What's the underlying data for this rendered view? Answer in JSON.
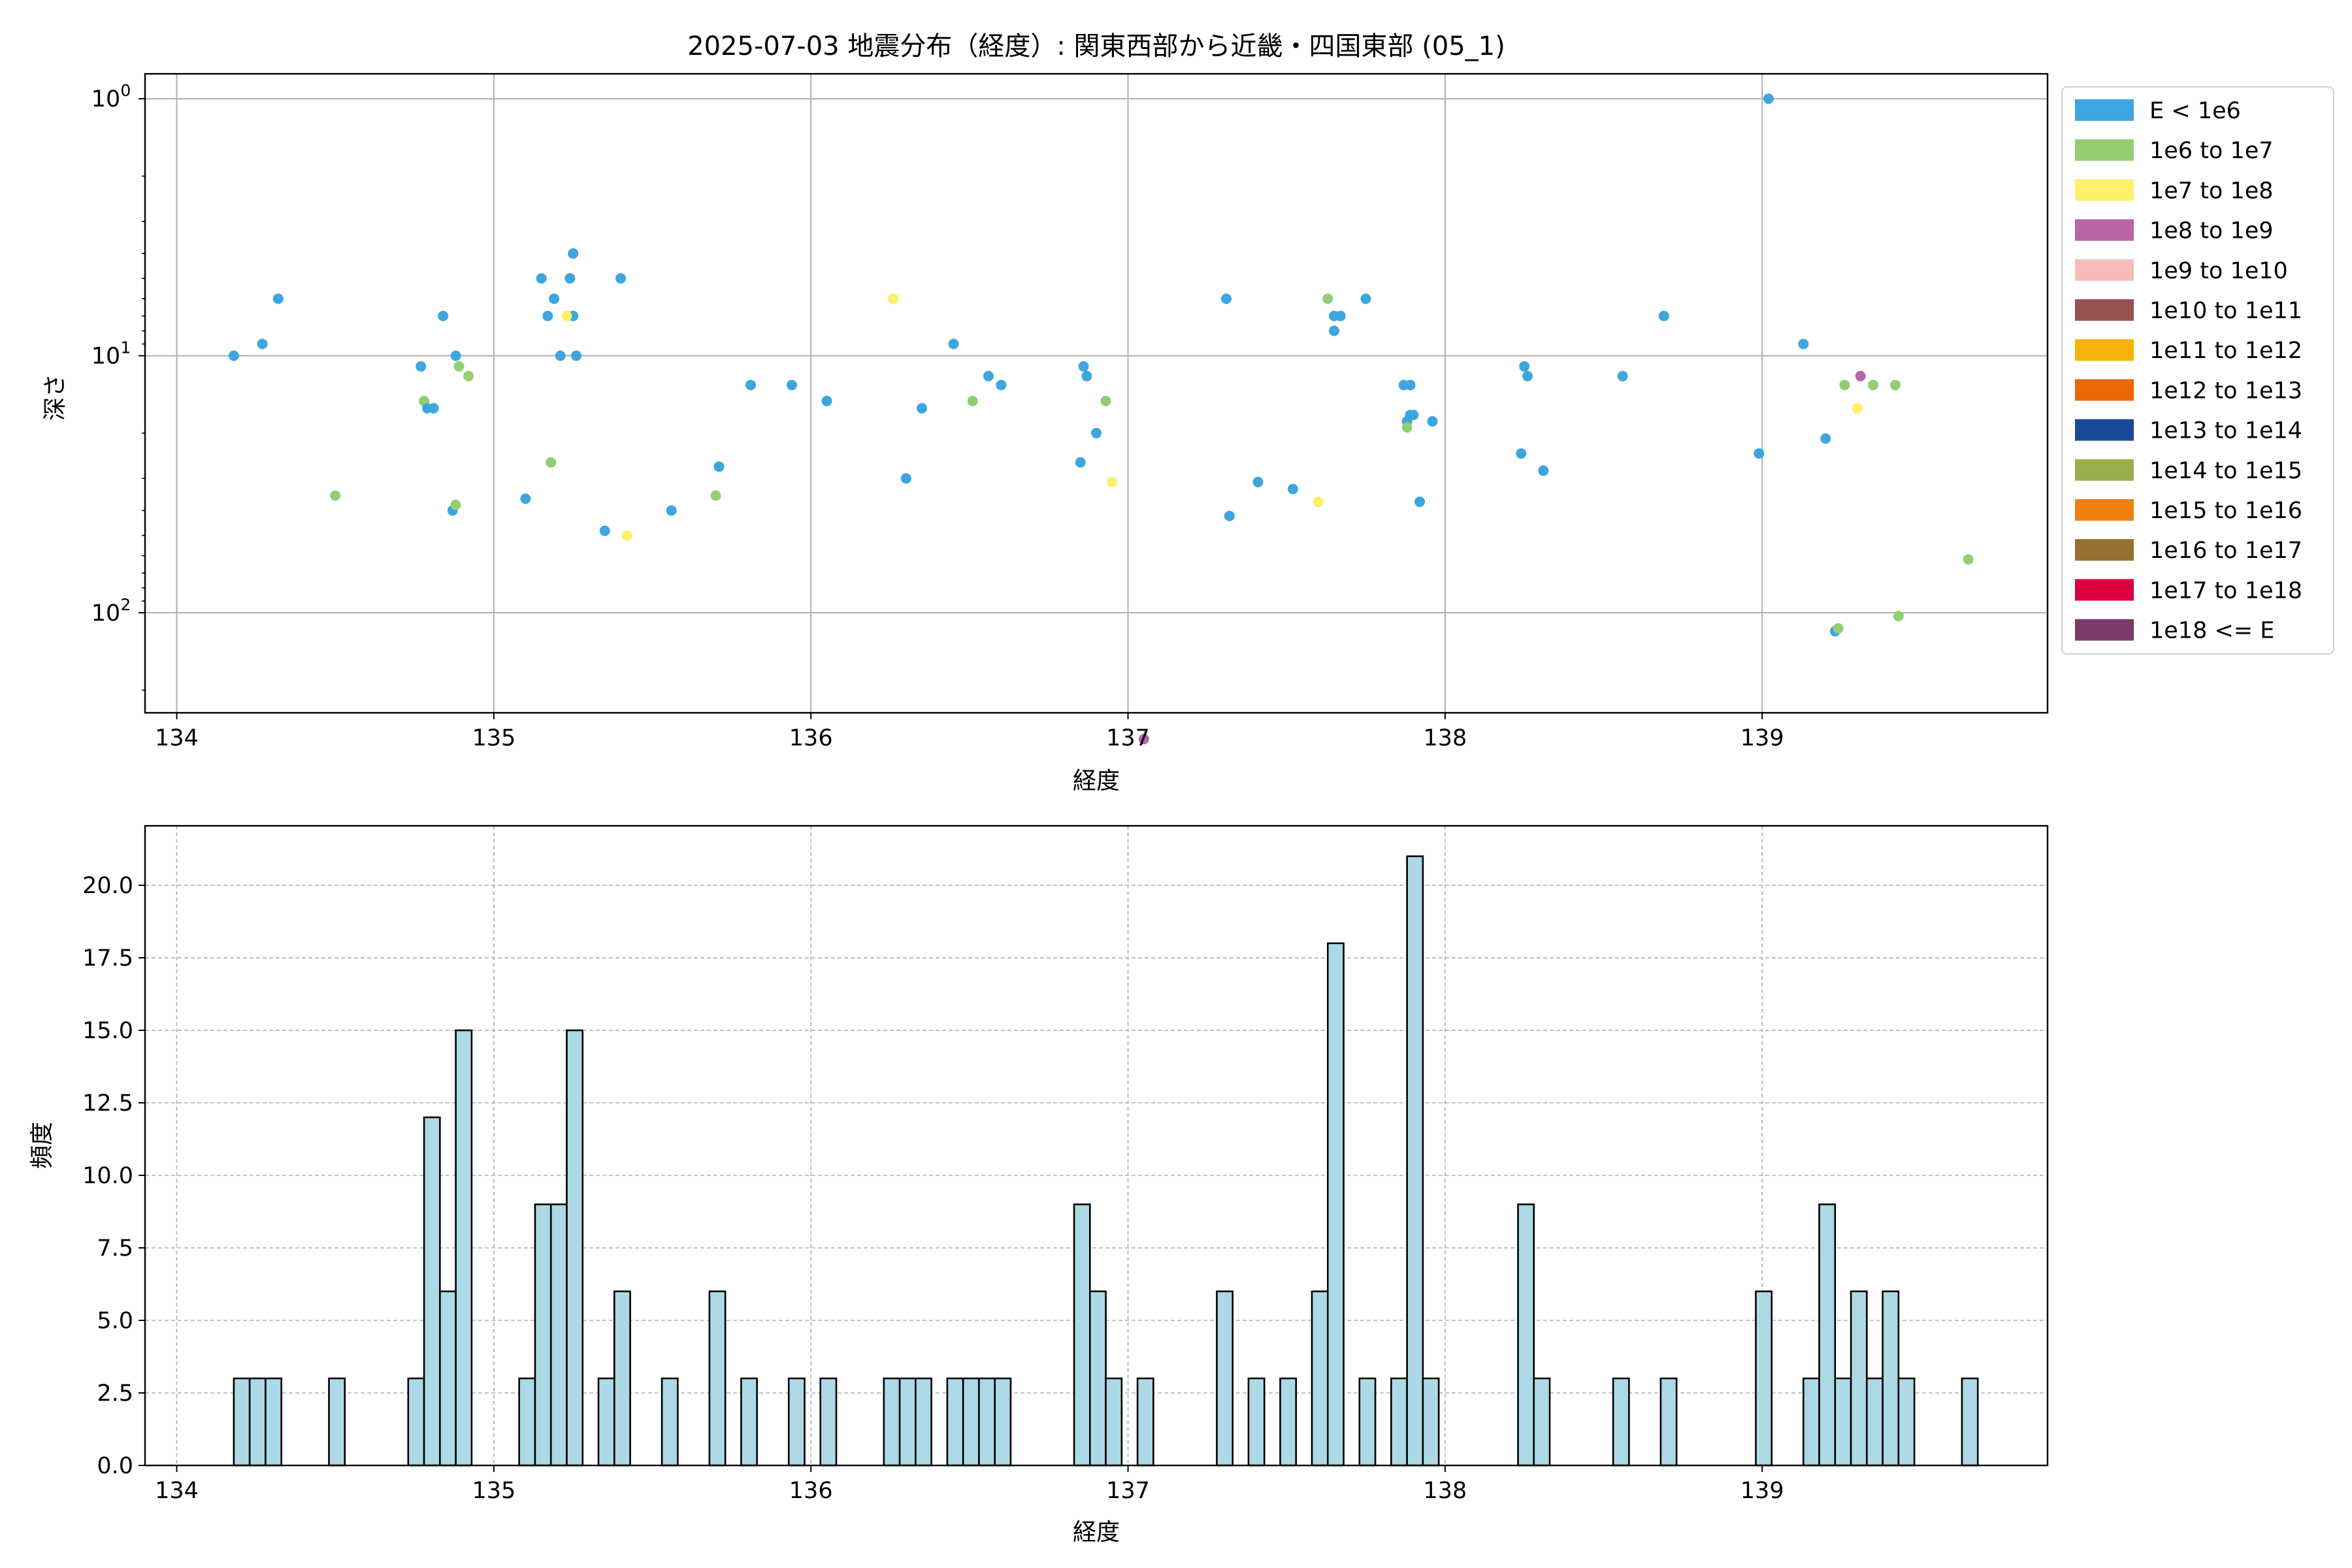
{
  "figure": {
    "title": "2025-07-03 地震分布（経度）: 関東西部から近畿・四国東部 (05_1)"
  },
  "chart_data": [
    {
      "type": "scatter",
      "xlabel": "経度",
      "ylabel": "深さ",
      "xlim": [
        133.9,
        139.9
      ],
      "ylim": [
        245,
        0.8
      ],
      "y_scale": "log",
      "y_inverted": true,
      "grid": true,
      "legend_position": "right-outside-top",
      "x_ticks": [
        {
          "v": 134,
          "label": "134"
        },
        {
          "v": 135,
          "label": "135"
        },
        {
          "v": 136,
          "label": "136"
        },
        {
          "v": 137,
          "label": "137"
        },
        {
          "v": 138,
          "label": "138"
        },
        {
          "v": 139,
          "label": "139"
        }
      ],
      "y_ticks": [
        {
          "v": 1,
          "base": "10",
          "exp": "0"
        },
        {
          "v": 10,
          "base": "10",
          "exp": "1"
        },
        {
          "v": 100,
          "base": "10",
          "exp": "2"
        }
      ],
      "legend": [
        {
          "label": "E < 1e6",
          "color": "#3ea6de"
        },
        {
          "label": "1e6 to 1e7",
          "color": "#93cf72"
        },
        {
          "label": "1e7 to 1e8",
          "color": "#fdf06a"
        },
        {
          "label": "1e8 to 1e9",
          "color": "#b866a8"
        },
        {
          "label": "1e9 to 1e10",
          "color": "#f6bcb9"
        },
        {
          "label": "1e10 to 1e11",
          "color": "#965250"
        },
        {
          "label": "1e11 to 1e12",
          "color": "#f6b40a"
        },
        {
          "label": "1e12 to 1e13",
          "color": "#ec6607"
        },
        {
          "label": "1e13 to 1e14",
          "color": "#1c4997"
        },
        {
          "label": "1e14 to 1e15",
          "color": "#9bae4e"
        },
        {
          "label": "1e15 to 1e16",
          "color": "#ef7f10"
        },
        {
          "label": "1e16 to 1e17",
          "color": "#96702e"
        },
        {
          "label": "1e17 to 1e18",
          "color": "#de003d"
        },
        {
          "label": "1e18 <= E",
          "color": "#7b3c6c"
        }
      ],
      "points": [
        {
          "x": 134.18,
          "y": 10,
          "c": 0
        },
        {
          "x": 134.27,
          "y": 9,
          "c": 0
        },
        {
          "x": 134.32,
          "y": 6,
          "c": 0
        },
        {
          "x": 134.5,
          "y": 35,
          "c": 1
        },
        {
          "x": 134.77,
          "y": 11,
          "c": 0
        },
        {
          "x": 134.78,
          "y": 15,
          "c": 1
        },
        {
          "x": 134.79,
          "y": 16,
          "c": 0
        },
        {
          "x": 134.81,
          "y": 16,
          "c": 0
        },
        {
          "x": 134.84,
          "y": 7,
          "c": 0
        },
        {
          "x": 134.87,
          "y": 40,
          "c": 0
        },
        {
          "x": 134.88,
          "y": 38,
          "c": 1
        },
        {
          "x": 134.88,
          "y": 10,
          "c": 0
        },
        {
          "x": 134.89,
          "y": 11,
          "c": 1
        },
        {
          "x": 134.92,
          "y": 12,
          "c": 1
        },
        {
          "x": 135.1,
          "y": 36,
          "c": 0
        },
        {
          "x": 135.15,
          "y": 5,
          "c": 0
        },
        {
          "x": 135.17,
          "y": 7,
          "c": 0
        },
        {
          "x": 135.18,
          "y": 26,
          "c": 1
        },
        {
          "x": 135.19,
          "y": 6,
          "c": 0
        },
        {
          "x": 135.21,
          "y": 10,
          "c": 0
        },
        {
          "x": 135.24,
          "y": 5,
          "c": 0
        },
        {
          "x": 135.25,
          "y": 4,
          "c": 0
        },
        {
          "x": 135.25,
          "y": 7,
          "c": 0
        },
        {
          "x": 135.23,
          "y": 7,
          "c": 2
        },
        {
          "x": 135.26,
          "y": 10,
          "c": 0
        },
        {
          "x": 135.35,
          "y": 48,
          "c": 0
        },
        {
          "x": 135.4,
          "y": 5,
          "c": 0
        },
        {
          "x": 135.42,
          "y": 50,
          "c": 2
        },
        {
          "x": 135.56,
          "y": 40,
          "c": 0
        },
        {
          "x": 135.7,
          "y": 35,
          "c": 1
        },
        {
          "x": 135.71,
          "y": 27,
          "c": 0
        },
        {
          "x": 135.81,
          "y": 13,
          "c": 0
        },
        {
          "x": 135.94,
          "y": 13,
          "c": 0
        },
        {
          "x": 136.05,
          "y": 15,
          "c": 0
        },
        {
          "x": 136.26,
          "y": 6,
          "c": 2
        },
        {
          "x": 136.3,
          "y": 30,
          "c": 0
        },
        {
          "x": 136.35,
          "y": 16,
          "c": 0
        },
        {
          "x": 136.45,
          "y": 9,
          "c": 0
        },
        {
          "x": 136.51,
          "y": 15,
          "c": 1
        },
        {
          "x": 136.56,
          "y": 12,
          "c": 0
        },
        {
          "x": 136.6,
          "y": 13,
          "c": 0
        },
        {
          "x": 136.85,
          "y": 26,
          "c": 0
        },
        {
          "x": 136.86,
          "y": 11,
          "c": 0
        },
        {
          "x": 136.87,
          "y": 12,
          "c": 0
        },
        {
          "x": 136.9,
          "y": 20,
          "c": 0
        },
        {
          "x": 136.93,
          "y": 15,
          "c": 1
        },
        {
          "x": 136.95,
          "y": 31,
          "c": 2
        },
        {
          "x": 137.05,
          "y": 310,
          "c": 3
        },
        {
          "x": 137.31,
          "y": 6,
          "c": 0
        },
        {
          "x": 137.32,
          "y": 42,
          "c": 0
        },
        {
          "x": 137.41,
          "y": 31,
          "c": 0
        },
        {
          "x": 137.52,
          "y": 33,
          "c": 0
        },
        {
          "x": 137.6,
          "y": 37,
          "c": 2
        },
        {
          "x": 137.63,
          "y": 6,
          "c": 1
        },
        {
          "x": 137.65,
          "y": 7,
          "c": 0
        },
        {
          "x": 137.65,
          "y": 8,
          "c": 0
        },
        {
          "x": 137.67,
          "y": 7,
          "c": 0
        },
        {
          "x": 137.75,
          "y": 6,
          "c": 0
        },
        {
          "x": 137.87,
          "y": 13,
          "c": 0
        },
        {
          "x": 137.88,
          "y": 18,
          "c": 0
        },
        {
          "x": 137.89,
          "y": 13,
          "c": 0
        },
        {
          "x": 137.89,
          "y": 17,
          "c": 0
        },
        {
          "x": 137.9,
          "y": 17,
          "c": 0
        },
        {
          "x": 137.88,
          "y": 19,
          "c": 1
        },
        {
          "x": 137.92,
          "y": 37,
          "c": 0
        },
        {
          "x": 137.96,
          "y": 18,
          "c": 0
        },
        {
          "x": 138.24,
          "y": 24,
          "c": 0
        },
        {
          "x": 138.25,
          "y": 11,
          "c": 0
        },
        {
          "x": 138.26,
          "y": 12,
          "c": 0
        },
        {
          "x": 138.31,
          "y": 28,
          "c": 0
        },
        {
          "x": 138.56,
          "y": 12,
          "c": 0
        },
        {
          "x": 138.69,
          "y": 7,
          "c": 0
        },
        {
          "x": 138.99,
          "y": 24,
          "c": 0
        },
        {
          "x": 139.02,
          "y": 1,
          "c": 0
        },
        {
          "x": 139.13,
          "y": 9,
          "c": 0
        },
        {
          "x": 139.2,
          "y": 21,
          "c": 0
        },
        {
          "x": 139.23,
          "y": 118,
          "c": 0
        },
        {
          "x": 139.24,
          "y": 115,
          "c": 1
        },
        {
          "x": 139.26,
          "y": 13,
          "c": 1
        },
        {
          "x": 139.3,
          "y": 16,
          "c": 2
        },
        {
          "x": 139.31,
          "y": 12,
          "c": 3
        },
        {
          "x": 139.35,
          "y": 13,
          "c": 1
        },
        {
          "x": 139.42,
          "y": 13,
          "c": 1
        },
        {
          "x": 139.43,
          "y": 103,
          "c": 1
        },
        {
          "x": 139.65,
          "y": 62,
          "c": 1
        }
      ]
    },
    {
      "type": "bar",
      "xlabel": "経度",
      "ylabel": "頻度",
      "xlim": [
        133.9,
        139.9
      ],
      "ylim": [
        0,
        22.05
      ],
      "grid": true,
      "grid_style": "dashed",
      "bar_color": "#add8e6",
      "bin_width": 0.05,
      "x_ticks": [
        {
          "v": 134,
          "label": "134"
        },
        {
          "v": 135,
          "label": "135"
        },
        {
          "v": 136,
          "label": "136"
        },
        {
          "v": 137,
          "label": "137"
        },
        {
          "v": 138,
          "label": "138"
        },
        {
          "v": 139,
          "label": "139"
        }
      ],
      "y_ticks": [
        {
          "v": 0,
          "label": "0.0"
        },
        {
          "v": 2.5,
          "label": "2.5"
        },
        {
          "v": 5,
          "label": "5.0"
        },
        {
          "v": 7.5,
          "label": "7.5"
        },
        {
          "v": 10,
          "label": "10.0"
        },
        {
          "v": 12.5,
          "label": "12.5"
        },
        {
          "v": 15,
          "label": "15.0"
        },
        {
          "v": 17.5,
          "label": "17.5"
        },
        {
          "v": 20,
          "label": "20.0"
        }
      ],
      "bins": [
        {
          "x0": 134.18,
          "count": 3
        },
        {
          "x0": 134.23,
          "count": 3
        },
        {
          "x0": 134.28,
          "count": 3
        },
        {
          "x0": 134.48,
          "count": 3
        },
        {
          "x0": 134.73,
          "count": 3
        },
        {
          "x0": 134.78,
          "count": 12
        },
        {
          "x0": 134.83,
          "count": 6
        },
        {
          "x0": 134.88,
          "count": 15
        },
        {
          "x0": 135.08,
          "count": 3
        },
        {
          "x0": 135.13,
          "count": 9
        },
        {
          "x0": 135.18,
          "count": 9
        },
        {
          "x0": 135.23,
          "count": 15
        },
        {
          "x0": 135.33,
          "count": 3
        },
        {
          "x0": 135.38,
          "count": 6
        },
        {
          "x0": 135.53,
          "count": 3
        },
        {
          "x0": 135.68,
          "count": 6
        },
        {
          "x0": 135.78,
          "count": 3
        },
        {
          "x0": 135.93,
          "count": 3
        },
        {
          "x0": 136.03,
          "count": 3
        },
        {
          "x0": 136.23,
          "count": 3
        },
        {
          "x0": 136.28,
          "count": 3
        },
        {
          "x0": 136.33,
          "count": 3
        },
        {
          "x0": 136.43,
          "count": 3
        },
        {
          "x0": 136.48,
          "count": 3
        },
        {
          "x0": 136.53,
          "count": 3
        },
        {
          "x0": 136.58,
          "count": 3
        },
        {
          "x0": 136.83,
          "count": 9
        },
        {
          "x0": 136.88,
          "count": 6
        },
        {
          "x0": 136.93,
          "count": 3
        },
        {
          "x0": 137.03,
          "count": 3
        },
        {
          "x0": 137.28,
          "count": 6
        },
        {
          "x0": 137.38,
          "count": 3
        },
        {
          "x0": 137.48,
          "count": 3
        },
        {
          "x0": 137.58,
          "count": 6
        },
        {
          "x0": 137.63,
          "count": 18
        },
        {
          "x0": 137.73,
          "count": 3
        },
        {
          "x0": 137.83,
          "count": 3
        },
        {
          "x0": 137.88,
          "count": 21
        },
        {
          "x0": 137.93,
          "count": 3
        },
        {
          "x0": 138.23,
          "count": 9
        },
        {
          "x0": 138.28,
          "count": 3
        },
        {
          "x0": 138.53,
          "count": 3
        },
        {
          "x0": 138.68,
          "count": 3
        },
        {
          "x0": 138.98,
          "count": 6
        },
        {
          "x0": 139.13,
          "count": 3
        },
        {
          "x0": 139.18,
          "count": 9
        },
        {
          "x0": 139.23,
          "count": 3
        },
        {
          "x0": 139.28,
          "count": 6
        },
        {
          "x0": 139.33,
          "count": 3
        },
        {
          "x0": 139.38,
          "count": 6
        },
        {
          "x0": 139.43,
          "count": 3
        },
        {
          "x0": 139.63,
          "count": 3
        }
      ]
    }
  ]
}
